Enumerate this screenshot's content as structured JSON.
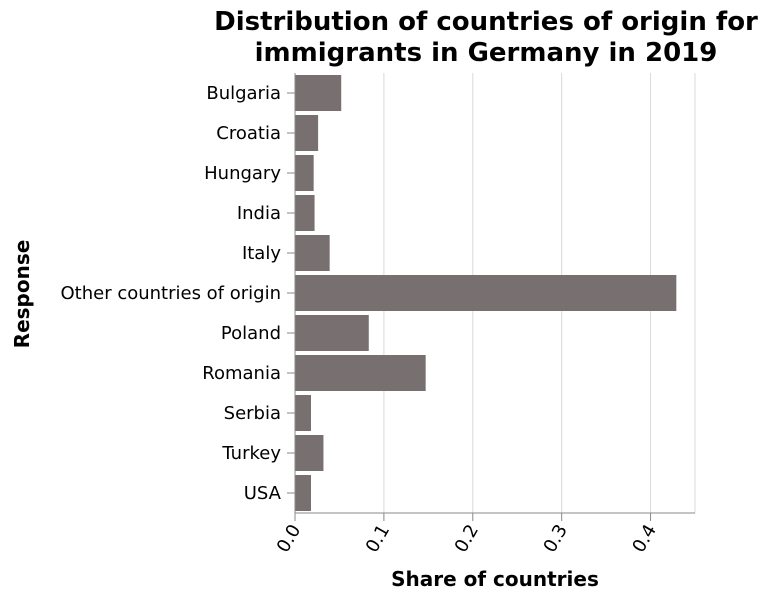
{
  "chart_data": {
    "type": "bar",
    "orientation": "horizontal",
    "title": "Distribution of countries of origin for immigrants in Germany in 2019",
    "title_lines": [
      "Distribution of countries of origin for",
      "immigrants in Germany in 2019"
    ],
    "xlabel": "Share of countries",
    "ylabel": "Response",
    "categories": [
      "Bulgaria",
      "Croatia",
      "Hungary",
      "India",
      "Italy",
      "Other countries of origin",
      "Poland",
      "Romania",
      "Serbia",
      "Turkey",
      "USA"
    ],
    "values": [
      0.052,
      0.026,
      0.021,
      0.022,
      0.039,
      0.429,
      0.083,
      0.147,
      0.018,
      0.032,
      0.018
    ],
    "xlim": [
      0,
      0.45
    ],
    "xticks": [
      0.0,
      0.1,
      0.2,
      0.3,
      0.4
    ],
    "xtick_labels": [
      "0.0",
      "0.1",
      "0.2",
      "0.3",
      "0.4"
    ],
    "grid": "vertical",
    "bar_color": "#787070"
  }
}
